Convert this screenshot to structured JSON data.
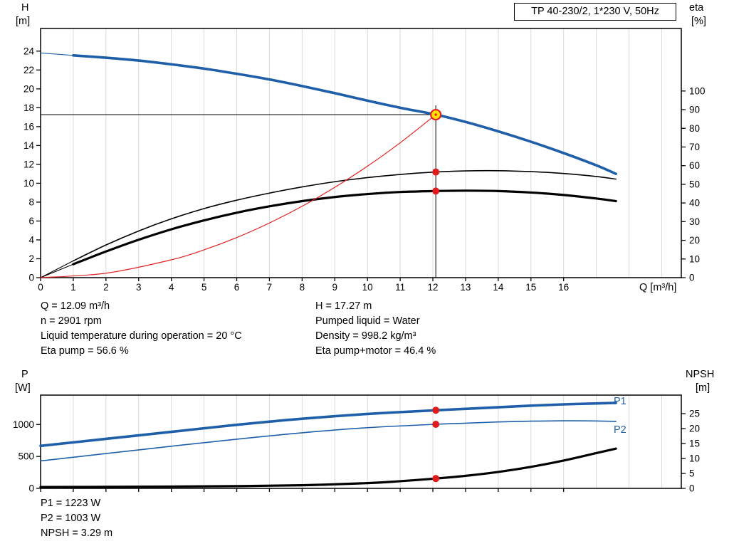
{
  "title_box": {
    "label": "TP 40-230/2, 1*230 V, 50Hz"
  },
  "axis_titles": {
    "h": "H",
    "h_unit": "[m]",
    "eta": "eta",
    "eta_unit": "[%]",
    "q": "Q [m³/h]",
    "p": "P",
    "p_unit": "[W]",
    "npsh": "NPSH",
    "npsh_unit": "[m]"
  },
  "curve_labels": {
    "p1": "P1",
    "p2": "P2"
  },
  "info": {
    "left": [
      "Q = 12.09 m³/h",
      "n = 2901 rpm",
      "Liquid temperature during operation = 20 °C",
      "Eta pump = 56.6 %"
    ],
    "right": [
      "H = 17.27 m",
      "Pumped liquid = Water",
      "Density = 998.2 kg/m³",
      "Eta pump+motor = 46.4 %"
    ]
  },
  "footer": [
    "P1 = 1223 W",
    "P2 = 1003 W",
    "NPSH = 3.29 m"
  ],
  "colors": {
    "curve_blue": "#1f5fa9",
    "curve_black": "#000000",
    "curve_red": "#e02021",
    "dot_red": "#e01b1b",
    "duty_yellow": "#ffe000",
    "grid": "#d9d9d9",
    "frame": "#000000"
  },
  "chart_data": [
    {
      "type": "line",
      "name": "qh-eta-chart",
      "title": "TP 40-230/2, 1*230 V, 50Hz",
      "x_label": "Q [m³/h]",
      "y_left_label": "H [m]",
      "y_right_label": "eta [%]",
      "x_max": 19.6,
      "x_ticks": [
        0,
        1,
        2,
        3,
        4,
        5,
        6,
        7,
        8,
        9,
        10,
        11,
        12,
        13,
        14,
        15,
        16
      ],
      "grid_x": [
        1,
        2,
        3,
        4,
        5,
        6,
        7,
        8,
        9,
        10,
        11,
        12,
        13,
        14,
        15,
        16,
        17,
        18,
        19
      ],
      "y_left_max": 26.4,
      "y_left_ticks": [
        0,
        2,
        4,
        6,
        8,
        10,
        12,
        14,
        16,
        18,
        20,
        22,
        24
      ],
      "y_right_max": 133.5,
      "y_right_ticks": [
        0,
        10,
        20,
        30,
        40,
        50,
        60,
        70,
        80,
        90,
        100
      ],
      "duty_point": {
        "q": 12.09,
        "h": 17.27
      },
      "series": [
        {
          "name": "h-curve",
          "axis": "left",
          "color": "#1f5fa9",
          "width": 3.6,
          "thin_until": 1,
          "points": [
            [
              0,
              23.8
            ],
            [
              1,
              23.55
            ],
            [
              2,
              23.3
            ],
            [
              3,
              23.0
            ],
            [
              4,
              22.6
            ],
            [
              5,
              22.15
            ],
            [
              6,
              21.6
            ],
            [
              7,
              21.0
            ],
            [
              8,
              20.3
            ],
            [
              9,
              19.55
            ],
            [
              10,
              18.75
            ],
            [
              11,
              18.0
            ],
            [
              12.09,
              17.27
            ],
            [
              13,
              16.5
            ],
            [
              14,
              15.5
            ],
            [
              15,
              14.4
            ],
            [
              16,
              13.2
            ],
            [
              17,
              11.9
            ],
            [
              17.6,
              11.0
            ]
          ]
        },
        {
          "name": "eta-pump-curve",
          "axis": "right",
          "color": "#000000",
          "width": 1.6,
          "thin_until": 1,
          "points": [
            [
              0,
              0
            ],
            [
              1,
              9
            ],
            [
              2,
              17.5
            ],
            [
              3,
              25
            ],
            [
              4,
              31.5
            ],
            [
              5,
              37
            ],
            [
              6,
              41.5
            ],
            [
              7,
              45.3
            ],
            [
              8,
              48.6
            ],
            [
              9,
              51.4
            ],
            [
              10,
              53.6
            ],
            [
              11,
              55.3
            ],
            [
              12.09,
              56.6
            ],
            [
              13,
              57.2
            ],
            [
              14,
              57.3
            ],
            [
              15,
              56.8
            ],
            [
              16,
              55.8
            ],
            [
              17,
              54.2
            ],
            [
              17.6,
              52.8
            ]
          ]
        },
        {
          "name": "eta-pump-motor-curve",
          "axis": "right",
          "color": "#000000",
          "width": 3.2,
          "thin_until": 1,
          "points": [
            [
              0,
              0
            ],
            [
              1,
              7.2
            ],
            [
              2,
              14
            ],
            [
              3,
              20.3
            ],
            [
              4,
              25.9
            ],
            [
              5,
              30.7
            ],
            [
              6,
              34.8
            ],
            [
              7,
              38.2
            ],
            [
              8,
              41
            ],
            [
              9,
              43.2
            ],
            [
              10,
              44.8
            ],
            [
              11,
              45.9
            ],
            [
              12.09,
              46.4
            ],
            [
              13,
              46.6
            ],
            [
              14,
              46.4
            ],
            [
              15,
              45.6
            ],
            [
              16,
              44.3
            ],
            [
              17,
              42.4
            ],
            [
              17.6,
              41
            ]
          ]
        },
        {
          "name": "system-curve",
          "axis": "left",
          "color": "#e02021",
          "width": 1.2,
          "points": [
            [
              0,
              0
            ],
            [
              2,
              0.47
            ],
            [
              4,
              1.89
            ],
            [
              5,
              2.95
            ],
            [
              6,
              4.25
            ],
            [
              7,
              5.79
            ],
            [
              8,
              7.56
            ],
            [
              9,
              9.57
            ],
            [
              10,
              11.81
            ],
            [
              11,
              14.29
            ],
            [
              12.09,
              17.27
            ]
          ]
        }
      ],
      "dots": [
        {
          "axis": "right",
          "q": 12.09,
          "v": 56.6
        },
        {
          "axis": "right",
          "q": 12.09,
          "v": 46.4
        }
      ]
    },
    {
      "type": "line",
      "name": "power-npsh-chart",
      "x_label": "",
      "y_left_label": "P [W]",
      "y_right_label": "NPSH [m]",
      "x_max": 19.6,
      "x_ticks": [
        0,
        1,
        2,
        3,
        4,
        5,
        6,
        7,
        8,
        9,
        10,
        11,
        12,
        13,
        14,
        15,
        16
      ],
      "grid_x": [
        1,
        2,
        3,
        4,
        5,
        6,
        7,
        8,
        9,
        10,
        11,
        12,
        13,
        14,
        15,
        16,
        17,
        18,
        19
      ],
      "y_left_max": 1460,
      "y_left_ticks": [
        0,
        500,
        1000
      ],
      "y_right_max": 31.2,
      "y_right_ticks": [
        0,
        5,
        10,
        15,
        20,
        25
      ],
      "series": [
        {
          "name": "p1-curve",
          "axis": "left",
          "color": "#1f5fa9",
          "width": 3.6,
          "points": [
            [
              0,
              665
            ],
            [
              2,
              775
            ],
            [
              4,
              885
            ],
            [
              6,
              995
            ],
            [
              8,
              1090
            ],
            [
              10,
              1165
            ],
            [
              12.09,
              1223
            ],
            [
              13,
              1245
            ],
            [
              14,
              1270
            ],
            [
              15,
              1295
            ],
            [
              16,
              1315
            ],
            [
              17,
              1330
            ],
            [
              17.6,
              1338
            ]
          ]
        },
        {
          "name": "p2-curve",
          "axis": "left",
          "color": "#1f5fa9",
          "width": 1.6,
          "points": [
            [
              0,
              430
            ],
            [
              2,
              545
            ],
            [
              4,
              660
            ],
            [
              6,
              770
            ],
            [
              8,
              870
            ],
            [
              10,
              950
            ],
            [
              12.09,
              1003
            ],
            [
              13,
              1020
            ],
            [
              14,
              1040
            ],
            [
              15,
              1052
            ],
            [
              16,
              1058
            ],
            [
              17,
              1055
            ],
            [
              17.6,
              1048
            ]
          ]
        },
        {
          "name": "npsh-curve",
          "axis": "right",
          "color": "#000000",
          "width": 3.2,
          "points": [
            [
              0,
              0.45
            ],
            [
              2,
              0.5
            ],
            [
              4,
              0.6
            ],
            [
              6,
              0.75
            ],
            [
              8,
              1.05
            ],
            [
              10,
              1.75
            ],
            [
              11,
              2.4
            ],
            [
              12.09,
              3.29
            ],
            [
              13,
              4.2
            ],
            [
              14,
              5.5
            ],
            [
              15,
              7.2
            ],
            [
              16,
              9.3
            ],
            [
              17,
              11.8
            ],
            [
              17.6,
              13.3
            ]
          ]
        }
      ],
      "dots": [
        {
          "axis": "left",
          "q": 12.09,
          "v": 1223
        },
        {
          "axis": "left",
          "q": 12.09,
          "v": 1003
        },
        {
          "axis": "right",
          "q": 12.09,
          "v": 3.29
        }
      ]
    }
  ]
}
